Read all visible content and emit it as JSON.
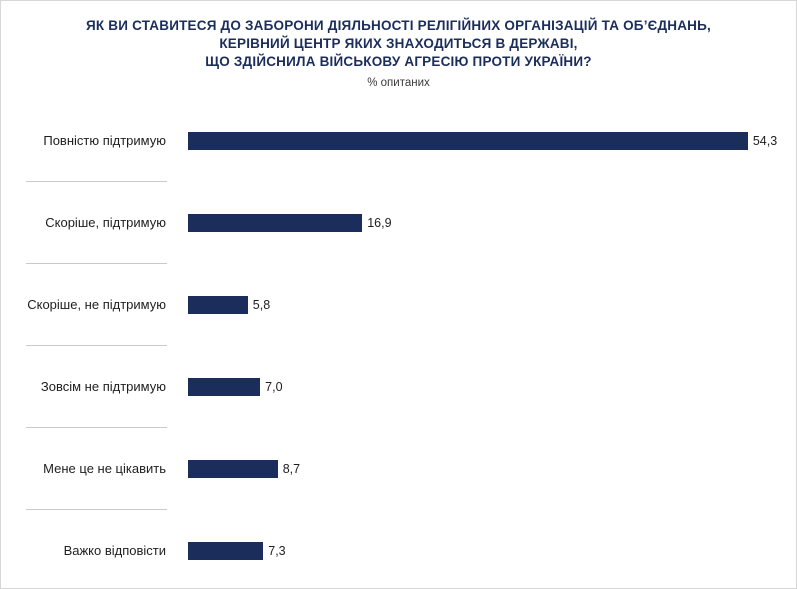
{
  "chart_data": {
    "type": "bar",
    "orientation": "horizontal",
    "title": "ЯК ВИ СТАВИТЕСЯ ДО ЗАБОРОНИ ДІЯЛЬНОСТІ РЕЛІГІЙНИХ ОРГАНІЗАЦІЙ ТА ОБ’ЄДНАНЬ, КЕРІВНИЙ ЦЕНТР ЯКИХ ЗНАХОДИТЬСЯ В ДЕРЖАВІ, ЩО ЗДІЙСНИЛА ВІЙСЬКОВУ АГРЕСІЮ ПРОТИ УКРАЇНИ?",
    "title_lines": [
      "ЯК ВИ СТАВИТЕСЯ ДО ЗАБОРОНИ ДІЯЛЬНОСТІ РЕЛІГІЙНИХ ОРГАНІЗАЦІЙ ТА ОБ’ЄДНАНЬ,",
      "КЕРІВНИЙ ЦЕНТР ЯКИХ ЗНАХОДИТЬСЯ В ДЕРЖАВІ,",
      "ЩО ЗДІЙСНИЛА ВІЙСЬКОВУ АГРЕСІЮ ПРОТИ УКРАЇНИ?"
    ],
    "subtitle": "% опитаних",
    "categories": [
      "Повністю підтримую",
      "Скоріше, підтримую",
      "Скоріше, не підтримую",
      "Зовсім не підтримую",
      "Мене це не цікавить",
      "Важко відповісти"
    ],
    "values": [
      54.3,
      16.9,
      5.8,
      7.0,
      8.7,
      7.3
    ],
    "value_labels": [
      "54,3",
      "16,9",
      "5,8",
      "7,0",
      "8,7",
      "7,3"
    ],
    "xlabel": "",
    "ylabel": "",
    "xlim": [
      0,
      58
    ],
    "grid": false,
    "legend": false,
    "bar_color": "#1b2d5b",
    "title_color": "#1b2d5b"
  }
}
